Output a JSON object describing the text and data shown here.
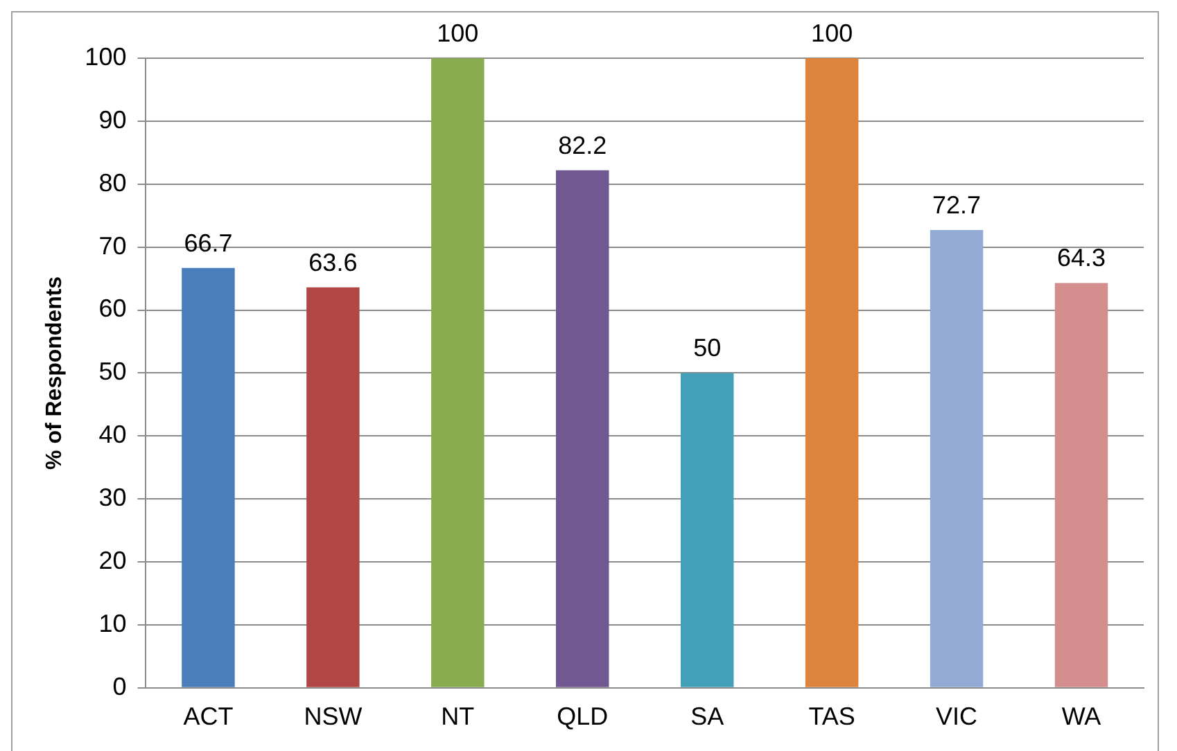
{
  "chart_data": {
    "type": "bar",
    "ylabel": "% of Respondents",
    "categories": [
      "ACT",
      "NSW",
      "NT",
      "QLD",
      "SA",
      "TAS",
      "VIC",
      "WA"
    ],
    "values": [
      66.7,
      63.6,
      100,
      82.2,
      50,
      100,
      72.7,
      64.3
    ],
    "colors": [
      "#4a7ebb",
      "#b04744",
      "#8aac50",
      "#715892",
      "#449fb8",
      "#df843c",
      "#93abd4",
      "#d38e8d"
    ],
    "ylim": [
      0,
      100
    ],
    "yticks": [
      0,
      10,
      20,
      30,
      40,
      50,
      60,
      70,
      80,
      90,
      100
    ],
    "grid": "y",
    "data_labels": true,
    "legend": false
  }
}
